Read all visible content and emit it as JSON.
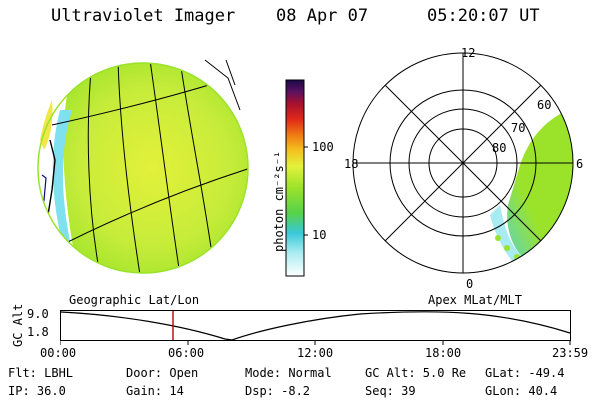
{
  "header": {
    "title": "Ultraviolet Imager",
    "date": "08 Apr 07",
    "time": "05:20:07 UT"
  },
  "colorbar": {
    "unit_label": "photon cm⁻²s⁻¹",
    "ticks": [
      "100",
      "10"
    ]
  },
  "panels": {
    "left_caption": "Geographic Lat/Lon",
    "right_caption": "Apex MLat/MLT",
    "polar_mlt_labels": {
      "top": "12",
      "left": "18",
      "right": "6",
      "bottom": "0"
    },
    "polar_lat_labels": [
      "60",
      "70",
      "80"
    ]
  },
  "altitude_plot": {
    "ylabel": "GC Alt",
    "y_ticks": [
      "9.0",
      "1.8"
    ],
    "x_ticks": [
      "00:00",
      "06:00",
      "12:00",
      "18:00",
      "23:59"
    ]
  },
  "status": {
    "flt": "Flt: LBHL",
    "ip": "IP: 36.0",
    "door": "Door: Open",
    "gain": "Gain: 14",
    "mode": "Mode: Normal",
    "dsp": "Dsp:   -8.2",
    "gc_alt": "GC Alt: 5.0 Re",
    "seq": "Seq: 39",
    "glat": "GLat: -49.4",
    "glon": "GLon:  40.4"
  },
  "colors": {
    "colorbar_stops": [
      "#ffffff",
      "#7fe0f0",
      "#39c8d8",
      "#56d24a",
      "#9be32a",
      "#e3f13a",
      "#f4c21e",
      "#f07a12",
      "#e0281a",
      "#a8102e",
      "#5c1060",
      "#1a0a4a"
    ],
    "marker": "#c00000"
  }
}
